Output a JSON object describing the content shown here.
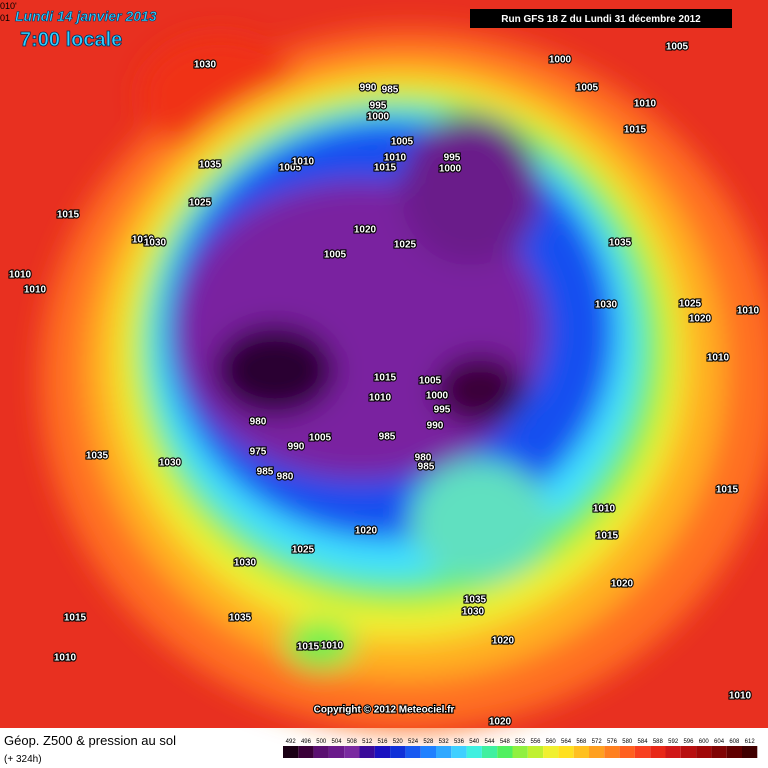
{
  "header": {
    "date": "Lundi 14 janvier 2013",
    "time": "7:00 locale",
    "corner": "010'",
    "corner2": "01",
    "run": "Run GFS 18 Z du Lundi 31 décembre 2012"
  },
  "footer": {
    "title": "Géop. Z500 & pression au sol",
    "lead": "(+ 324h)",
    "copyright": "Copyright © 2012 Meteociel.fr"
  },
  "colorbar": {
    "values": [
      492,
      496,
      500,
      504,
      508,
      512,
      516,
      520,
      524,
      528,
      532,
      536,
      540,
      544,
      548,
      552,
      556,
      560,
      564,
      568,
      572,
      576,
      580,
      584,
      588,
      592,
      596,
      600,
      604,
      608,
      612
    ],
    "colors": [
      "#1a0014",
      "#3a0038",
      "#5a1070",
      "#6a1a8a",
      "#7a2aa0",
      "#3a0a9a",
      "#1a10c0",
      "#1030d8",
      "#1858f0",
      "#2080ff",
      "#30a8ff",
      "#40d0ff",
      "#40f0e0",
      "#40f0a0",
      "#50f060",
      "#90f040",
      "#c0f030",
      "#f0f030",
      "#ffe020",
      "#ffc020",
      "#ffa020",
      "#ff8020",
      "#ff6020",
      "#f84020",
      "#e82818",
      "#d01818",
      "#b81010",
      "#a00808",
      "#800404",
      "#600000",
      "#400000"
    ]
  },
  "isobars": [
    1030,
    1035,
    1025,
    1015,
    1010,
    1030,
    1010,
    1010,
    1005,
    1010,
    990,
    985,
    995,
    1000,
    1005,
    1010,
    1015,
    995,
    1000,
    1020,
    1025,
    1005,
    1000,
    1005,
    1005,
    1010,
    1015,
    1035,
    1030,
    1025,
    1020,
    1010,
    1010,
    1015,
    1005,
    1000,
    1010,
    995,
    990,
    985,
    980,
    985,
    980,
    975,
    990,
    1005,
    985,
    980,
    1035,
    1030,
    1020,
    1025,
    1030,
    1015,
    1035,
    1010,
    1015,
    1010,
    1035,
    1030,
    1020,
    1010,
    1015,
    1020,
    1015,
    1010,
    1020
  ]
}
